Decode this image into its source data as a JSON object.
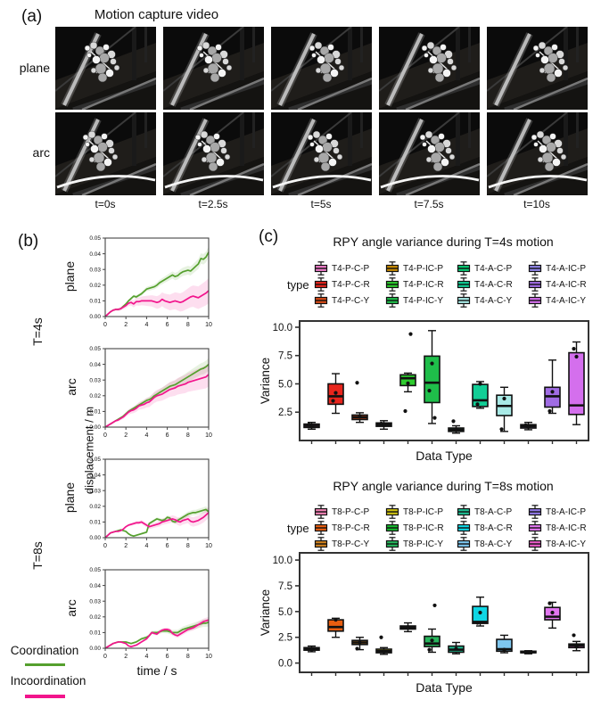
{
  "panel_a": {
    "label": "(a)",
    "title": "Motion capture video",
    "row_labels": [
      "plane",
      "arc"
    ],
    "time_labels": [
      "t=0s",
      "t=2.5s",
      "t=5s",
      "t=7.5s",
      "t=10s"
    ]
  },
  "panel_b": {
    "label": "(b)",
    "group_labels": [
      "T=4s",
      "T=8s"
    ],
    "row_labels": [
      "plane",
      "arc",
      "plane",
      "arc"
    ],
    "ylabel": "displacement / m",
    "xlabel": "time / s",
    "legend": [
      {
        "label": "Coordination",
        "color": "#55a02e"
      },
      {
        "label": "Incoordination",
        "color": "#f2148c"
      }
    ]
  },
  "panel_c": {
    "label": "(c)",
    "sections": [
      {
        "legend_title": "type"
      },
      {
        "legend_title": "type"
      }
    ]
  },
  "chart_data": [
    {
      "id": "b-t4-plane",
      "type": "line",
      "group": "T=4s",
      "surface": "plane",
      "x_step": 0.25,
      "xlim": [
        0,
        10
      ],
      "x_ticks": [
        0,
        2,
        4,
        6,
        8,
        10
      ],
      "y_tick_labels": [
        "0.00",
        "0.01",
        "0.02",
        "0.03",
        "0.04",
        "0.05"
      ],
      "y_max": 50,
      "series": [
        {
          "name": "Coordination",
          "color": "#55a02e",
          "band": 3.5,
          "values": [
            0,
            1.5,
            3,
            4,
            4.5,
            4.5,
            5,
            6.5,
            8,
            10,
            11.5,
            13,
            12.5,
            13.5,
            14.5,
            16,
            17.5,
            18,
            18.5,
            19,
            20,
            21.5,
            22.5,
            23.5,
            24.5,
            25.5,
            26.5,
            25.5,
            26,
            27.5,
            28.5,
            29,
            29.5,
            29,
            30.5,
            32,
            33.5,
            37,
            36.5,
            38,
            41
          ]
        },
        {
          "name": "Incoordination",
          "color": "#f2148c",
          "band": 8,
          "values": [
            0,
            1.5,
            3,
            4,
            4.5,
            4.5,
            5,
            6,
            7,
            8.5,
            9,
            8,
            9.5,
            9.5,
            10,
            10,
            10,
            10,
            10,
            9.5,
            9,
            9.5,
            11,
            10,
            9.5,
            9,
            9.5,
            10,
            9.5,
            9,
            9.5,
            10.5,
            11.5,
            12.5,
            13,
            12.5,
            12,
            13,
            14,
            15,
            16.5
          ]
        }
      ]
    },
    {
      "id": "b-t4-arc",
      "type": "line",
      "group": "T=4s",
      "surface": "arc",
      "x_step": 0.25,
      "xlim": [
        0,
        10
      ],
      "x_ticks": [
        0,
        2,
        4,
        6,
        8,
        10
      ],
      "y_tick_labels": [
        "0.00",
        "0.01",
        "0.02",
        "0.03",
        "0.04",
        "0.05"
      ],
      "y_max": 50,
      "series": [
        {
          "name": "Coordination",
          "color": "#55a02e",
          "band": 4,
          "values": [
            0,
            1,
            2,
            3,
            4,
            5,
            6,
            7,
            8.5,
            10,
            11,
            12,
            13,
            14,
            15,
            16,
            17,
            17.5,
            18.5,
            20,
            21,
            22,
            23,
            24,
            25,
            26,
            26.5,
            27,
            28,
            29,
            30,
            31,
            32,
            33,
            34,
            35,
            36,
            37,
            37.5,
            38.5,
            40
          ]
        },
        {
          "name": "Incoordination",
          "color": "#f2148c",
          "band": 7.5,
          "values": [
            0,
            1,
            2,
            3,
            4,
            4.5,
            5.5,
            6.5,
            8,
            9.5,
            10.5,
            11,
            12,
            13.5,
            14,
            14.5,
            15.5,
            16,
            17.5,
            19,
            20,
            20.5,
            21,
            22,
            23,
            24,
            24.5,
            25,
            26,
            26.5,
            27,
            27.5,
            28.5,
            29,
            29.5,
            30,
            30.5,
            31,
            31.5,
            32,
            33.5
          ]
        }
      ]
    },
    {
      "id": "b-t8-plane",
      "type": "line",
      "group": "T=8s",
      "surface": "plane",
      "x_step": 0.25,
      "xlim": [
        0,
        10
      ],
      "x_ticks": [
        0,
        2,
        4,
        6,
        8,
        10
      ],
      "y_tick_labels": [
        "0.00",
        "0.01",
        "0.02",
        "0.03",
        "0.04",
        "0.05"
      ],
      "y_max": 50,
      "series": [
        {
          "name": "Coordination",
          "color": "#55a02e",
          "band": 2,
          "values": [
            0,
            1.5,
            3,
            3.5,
            4,
            4.5,
            5,
            4.5,
            4,
            2.5,
            1.5,
            1,
            1.5,
            2,
            2.5,
            3,
            3.5,
            9,
            10,
            11,
            12,
            11.5,
            11,
            11.5,
            13,
            12.5,
            10.5,
            10,
            11,
            12,
            13,
            14,
            15,
            15.5,
            16,
            16,
            16.5,
            17,
            17.5,
            18,
            16.5
          ]
        },
        {
          "name": "Incoordination",
          "color": "#f2148c",
          "band": 3.5,
          "values": [
            0,
            1.5,
            3,
            3.5,
            4,
            4,
            4.5,
            5.5,
            7,
            8,
            8.5,
            9,
            9.5,
            9.5,
            10,
            9,
            8,
            7,
            7.5,
            8,
            8.5,
            9,
            10,
            10.5,
            11,
            11.5,
            12,
            11.5,
            10.5,
            10,
            11,
            11.5,
            12,
            10.5,
            10,
            10.5,
            11,
            12,
            13,
            14.5,
            16
          ]
        }
      ]
    },
    {
      "id": "b-t8-arc",
      "type": "line",
      "group": "T=8s",
      "surface": "arc",
      "x_step": 0.25,
      "xlim": [
        0,
        10
      ],
      "x_ticks": [
        0,
        2,
        4,
        6,
        8,
        10
      ],
      "y_tick_labels": [
        "0.00",
        "0.01",
        "0.02",
        "0.03",
        "0.04",
        "0.05"
      ],
      "y_max": 50,
      "series": [
        {
          "name": "Coordination",
          "color": "#55a02e",
          "band": 2.5,
          "values": [
            0,
            1,
            2,
            3,
            3.5,
            4,
            4,
            4,
            4,
            3.5,
            3,
            3.5,
            4,
            5,
            6,
            6.5,
            7,
            8,
            10,
            10,
            10,
            10.5,
            11,
            11,
            11,
            10.5,
            10,
            10,
            10,
            11,
            12,
            12.5,
            13,
            13.5,
            14,
            14.5,
            15,
            15.5,
            16,
            16,
            16.5
          ]
        },
        {
          "name": "Incoordination",
          "color": "#f2148c",
          "band": 2,
          "values": [
            0,
            1,
            2,
            3,
            3.5,
            4,
            4,
            3.5,
            3,
            1.5,
            1,
            1.5,
            2,
            3,
            4,
            5,
            6,
            8,
            10,
            9.5,
            9,
            10.5,
            11.5,
            12,
            12,
            11.5,
            9.5,
            8.5,
            8,
            9,
            10,
            11,
            12,
            12.5,
            13,
            14,
            15,
            16,
            17,
            17.5,
            18
          ]
        }
      ]
    },
    {
      "id": "c-t4",
      "type": "box",
      "title": "RPY angle variance during T=4s motion",
      "ylabel": "Variance",
      "xlabel": "Data Type",
      "ylim": [
        0,
        10.55
      ],
      "y_ticks": [
        2.5,
        5.0,
        7.5,
        10.0
      ],
      "boxes": [
        {
          "label": "T4-P-C-P",
          "color": "#F07ECC",
          "whislo": 1.0,
          "q1": 1.15,
          "med": 1.3,
          "q3": 1.45,
          "whishi": 1.6,
          "points": [
            1.25,
            1.4
          ]
        },
        {
          "label": "T4-P-C-R",
          "color": "#E8251C",
          "whislo": 2.4,
          "q1": 3.2,
          "med": 3.9,
          "q3": 5.0,
          "whishi": 5.9,
          "points": [
            4.2,
            3.5
          ]
        },
        {
          "label": "T4-P-C-Y",
          "color": "#D84A16",
          "whislo": 1.6,
          "q1": 1.85,
          "med": 2.05,
          "q3": 2.25,
          "whishi": 2.45,
          "points": [
            2.1,
            5.1
          ]
        },
        {
          "label": "T4-P-IC-P",
          "color": "#C98C04",
          "whislo": 1.0,
          "q1": 1.25,
          "med": 1.4,
          "q3": 1.55,
          "whishi": 1.75,
          "points": [
            1.35,
            1.5
          ]
        },
        {
          "label": "T4-P-IC-R",
          "color": "#2ECC2E",
          "whislo": 4.3,
          "q1": 4.85,
          "med": 5.5,
          "q3": 5.8,
          "whishi": 5.95,
          "points": [
            5.05,
            2.6,
            9.4
          ]
        },
        {
          "label": "T4-P-IC-Y",
          "color": "#1FBE4A",
          "whislo": 1.5,
          "q1": 3.35,
          "med": 5.1,
          "q3": 7.45,
          "whishi": 9.7,
          "points": [
            6.8,
            4.4,
            2.0
          ]
        },
        {
          "label": "T4-A-C-P",
          "color": "#0ACB74",
          "whislo": 0.65,
          "q1": 0.8,
          "med": 0.95,
          "q3": 1.1,
          "whishi": 1.3,
          "points": [
            1.0,
            1.7
          ]
        },
        {
          "label": "T4-A-C-R",
          "color": "#12CE96",
          "whislo": 2.85,
          "q1": 3.0,
          "med": 3.55,
          "q3": 4.95,
          "whishi": 5.2,
          "points": [
            5.0,
            3.2
          ]
        },
        {
          "label": "T4-A-C-Y",
          "color": "#A8EAE6",
          "whislo": 0.8,
          "q1": 2.2,
          "med": 3.05,
          "q3": 4.0,
          "whishi": 4.7,
          "points": [
            3.7,
            1.0
          ]
        },
        {
          "label": "T4-A-IC-P",
          "color": "#9186EA",
          "whislo": 0.95,
          "q1": 1.1,
          "med": 1.25,
          "q3": 1.4,
          "whishi": 1.6,
          "points": [
            1.2,
            1.35
          ]
        },
        {
          "label": "T4-A-IC-R",
          "color": "#A06CE4",
          "whislo": 2.4,
          "q1": 2.95,
          "med": 3.9,
          "q3": 4.7,
          "whishi": 7.1,
          "points": [
            4.3,
            2.6
          ]
        },
        {
          "label": "T4-A-IC-Y",
          "color": "#D46FED",
          "whislo": 1.4,
          "q1": 2.3,
          "med": 3.1,
          "q3": 7.75,
          "whishi": 8.7,
          "points": [
            7.4,
            8.1
          ]
        }
      ]
    },
    {
      "id": "c-t8",
      "type": "box",
      "title": "RPY angle variance during T=8s motion",
      "ylabel": "Variance",
      "xlabel": "Data Type",
      "ylim": [
        -0.9,
        10.7
      ],
      "y_ticks": [
        0.0,
        2.5,
        5.0,
        7.5,
        10.0
      ],
      "boxes": [
        {
          "label": "T8-P-C-P",
          "color": "#F083B4",
          "whislo": 1.1,
          "q1": 1.25,
          "med": 1.35,
          "q3": 1.5,
          "whishi": 1.65,
          "points": [
            1.3
          ]
        },
        {
          "label": "T8-P-C-R",
          "color": "#E85E10",
          "whislo": 2.5,
          "q1": 3.1,
          "med": 3.5,
          "q3": 4.2,
          "whishi": 4.35,
          "points": [
            4.2
          ]
        },
        {
          "label": "T8-P-C-Y",
          "color": "#D0821E",
          "whislo": 1.3,
          "q1": 1.8,
          "med": 2.0,
          "q3": 2.2,
          "whishi": 2.5,
          "points": [
            2.0,
            1.4
          ]
        },
        {
          "label": "T8-P-IC-P",
          "color": "#CCC013",
          "whislo": 0.85,
          "q1": 1.0,
          "med": 1.15,
          "q3": 1.35,
          "whishi": 1.5,
          "points": [
            1.1,
            2.5
          ]
        },
        {
          "label": "T8-P-IC-R",
          "color": "#16B82E",
          "whislo": 3.05,
          "q1": 3.3,
          "med": 3.45,
          "q3": 3.6,
          "whishi": 3.9,
          "points": [
            3.5
          ]
        },
        {
          "label": "T8-P-IC-Y",
          "color": "#27B55C",
          "whislo": 1.05,
          "q1": 1.6,
          "med": 1.9,
          "q3": 2.6,
          "whishi": 3.3,
          "points": [
            2.2,
            1.3,
            5.6
          ]
        },
        {
          "label": "T8-A-C-P",
          "color": "#1EBD92",
          "whislo": 0.9,
          "q1": 1.05,
          "med": 1.3,
          "q3": 1.65,
          "whishi": 2.0,
          "points": [
            1.4
          ]
        },
        {
          "label": "T8-A-C-R",
          "color": "#0FD6E4",
          "whislo": 3.6,
          "q1": 3.85,
          "med": 4.0,
          "q3": 5.5,
          "whishi": 6.4,
          "points": [
            4.9,
            3.9
          ]
        },
        {
          "label": "T8-A-C-Y",
          "color": "#7EC6EE",
          "whislo": 1.0,
          "q1": 1.15,
          "med": 1.35,
          "q3": 2.3,
          "whishi": 2.7,
          "points": [
            1.3
          ]
        },
        {
          "label": "T8-A-IC-P",
          "color": "#9279E8",
          "whislo": 0.9,
          "q1": 1.0,
          "med": 1.05,
          "q3": 1.15,
          "whishi": 1.2,
          "points": [
            1.05
          ]
        },
        {
          "label": "T8-A-IC-R",
          "color": "#E276F0",
          "whislo": 3.4,
          "q1": 4.2,
          "med": 4.5,
          "q3": 5.4,
          "whishi": 5.9,
          "points": [
            4.9,
            5.8
          ]
        },
        {
          "label": "T8-A-IC-Y",
          "color": "#E85BC8",
          "whislo": 1.2,
          "q1": 1.5,
          "med": 1.7,
          "q3": 1.85,
          "whishi": 2.1,
          "points": [
            1.6,
            2.7
          ]
        }
      ]
    }
  ]
}
